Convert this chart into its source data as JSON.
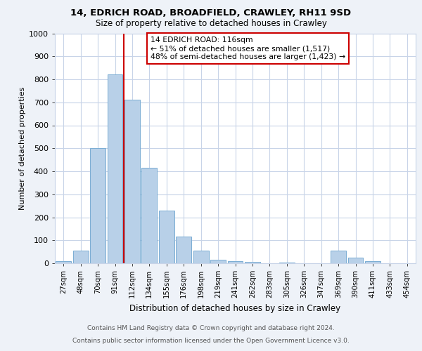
{
  "title1": "14, EDRICH ROAD, BROADFIELD, CRAWLEY, RH11 9SD",
  "title2": "Size of property relative to detached houses in Crawley",
  "xlabel": "Distribution of detached houses by size in Crawley",
  "ylabel": "Number of detached properties",
  "categories": [
    "27sqm",
    "48sqm",
    "70sqm",
    "91sqm",
    "112sqm",
    "134sqm",
    "155sqm",
    "176sqm",
    "198sqm",
    "219sqm",
    "241sqm",
    "262sqm",
    "283sqm",
    "305sqm",
    "326sqm",
    "347sqm",
    "369sqm",
    "390sqm",
    "411sqm",
    "433sqm",
    "454sqm"
  ],
  "values": [
    10,
    55,
    500,
    820,
    710,
    415,
    230,
    115,
    55,
    15,
    10,
    5,
    0,
    2,
    0,
    0,
    55,
    25,
    10,
    0,
    0
  ],
  "bar_color": "#b8d0e8",
  "bar_edge_color": "#7aadd4",
  "vline_color": "#cc0000",
  "vline_x": 3.5,
  "annotation_text": "14 EDRICH ROAD: 116sqm\n← 51% of detached houses are smaller (1,517)\n48% of semi-detached houses are larger (1,423) →",
  "annotation_box_color": "#ffffff",
  "annotation_box_edge": "#cc0000",
  "ylim": [
    0,
    1000
  ],
  "yticks": [
    0,
    100,
    200,
    300,
    400,
    500,
    600,
    700,
    800,
    900,
    1000
  ],
  "footer1": "Contains HM Land Registry data © Crown copyright and database right 2024.",
  "footer2": "Contains public sector information licensed under the Open Government Licence v3.0.",
  "bg_color": "#eef2f8",
  "plot_bg_color": "#ffffff",
  "grid_color": "#c8d4e8"
}
